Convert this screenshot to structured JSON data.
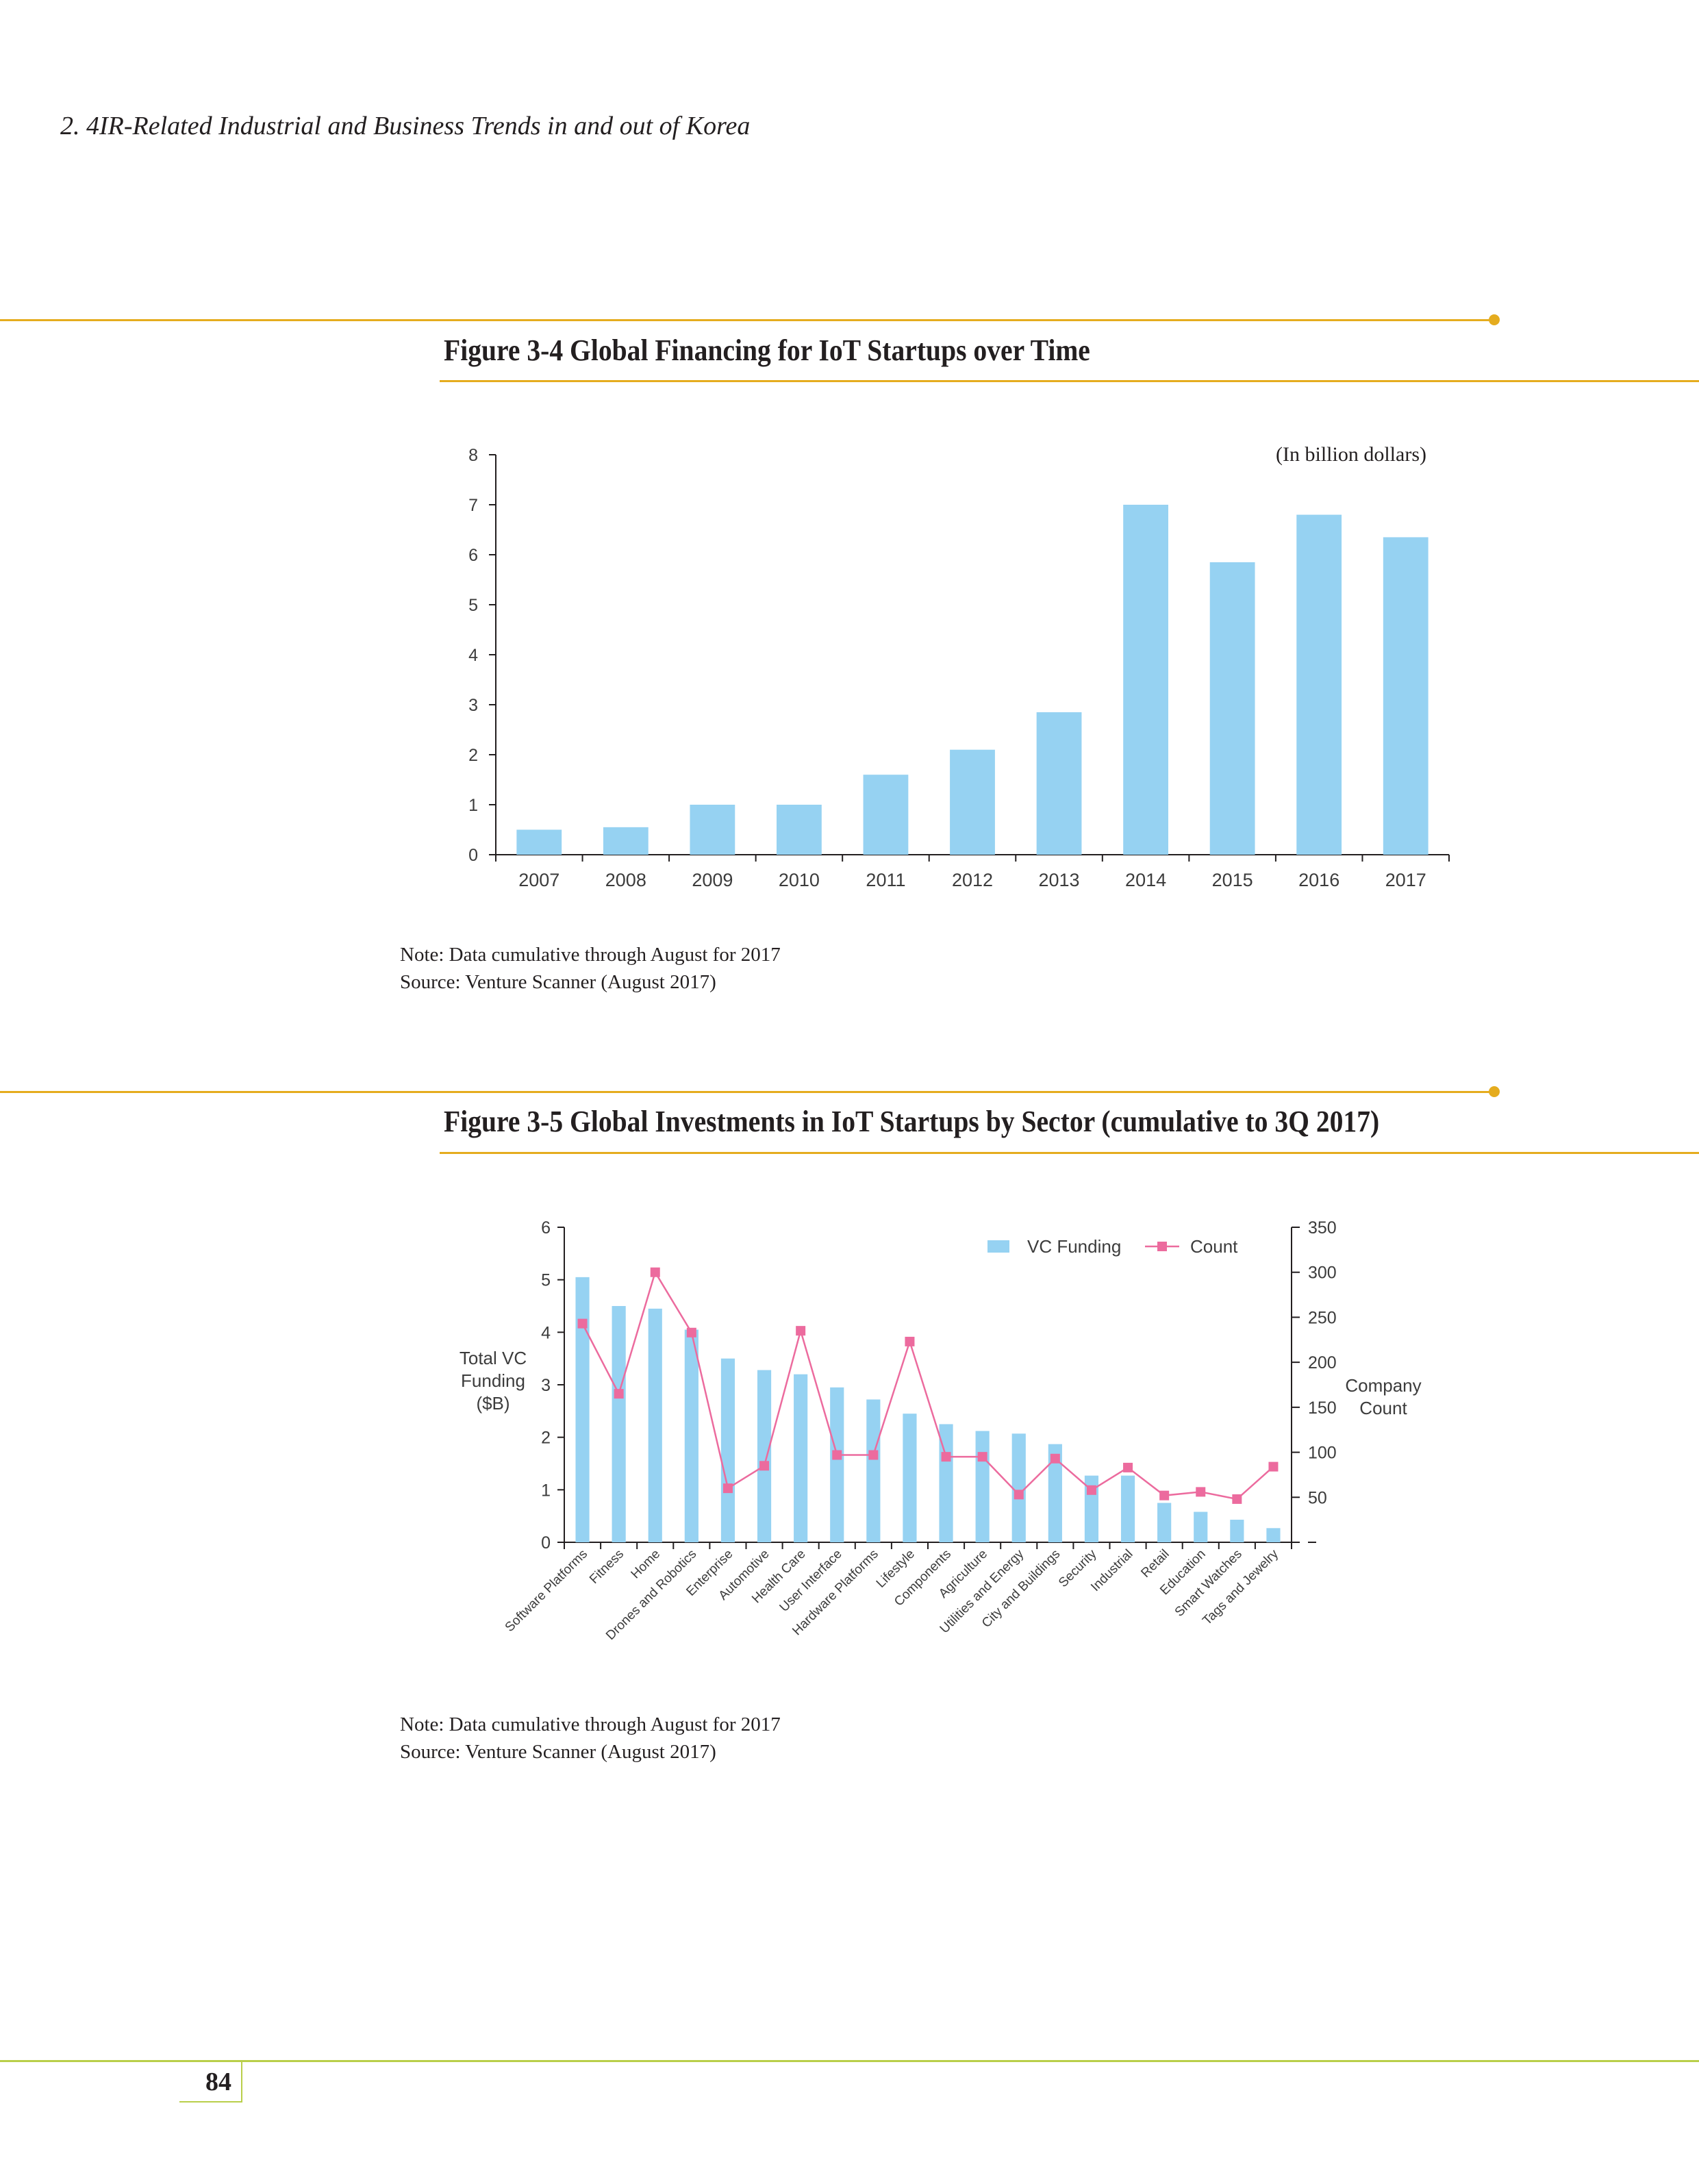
{
  "running_head": "2. 4IR-Related Industrial and Business Trends in and out of Korea",
  "page_number": "84",
  "colors": {
    "rule": "#e5ac1e",
    "bar": "#96d2f2",
    "count_line": "#ec6b9e",
    "footer_rule": "#b9cf4a"
  },
  "figure1": {
    "title": "Figure 3-4  Global Financing for IoT Startups over Time",
    "unit_label": "(In billion dollars)",
    "note": "Note: Data cumulative through August for 2017",
    "source": "Source: Venture Scanner (August 2017)"
  },
  "figure2": {
    "title": "Figure 3-5  Global Investments in IoT Startups by Sector (cumulative to 3Q 2017)",
    "note": "Note: Data cumulative through August for 2017",
    "source": "Source: Venture Scanner (August 2017)"
  },
  "chart_data": [
    {
      "type": "bar",
      "categories": [
        "2007",
        "2008",
        "2009",
        "2010",
        "2011",
        "2012",
        "2013",
        "2014",
        "2015",
        "2016",
        "2017"
      ],
      "values": [
        0.5,
        0.55,
        1.0,
        1.0,
        1.6,
        2.1,
        2.85,
        7.0,
        5.85,
        6.8,
        6.35
      ],
      "title": "Figure 3-4  Global Financing for IoT Startups over Time",
      "xlabel": "",
      "ylabel": "",
      "ylim": [
        0,
        8
      ],
      "yticks": [
        0,
        1,
        2,
        3,
        4,
        5,
        6,
        7,
        8
      ],
      "annotation": "(In billion dollars)",
      "grid": false
    },
    {
      "type": "bar",
      "title": "Figure 3-5  Global Investments in IoT Startups by Sector (cumulative to 3Q 2017)",
      "categories": [
        "Software Platforms",
        "Fitness",
        "Home",
        "Drones and Robotics",
        "Enterprise",
        "Automotive",
        "Health Care",
        "User Interface",
        "Hardware Platforms",
        "Lifestyle",
        "Components",
        "Agriculture",
        "Utilities and Energy",
        "City and Buildings",
        "Security",
        "Industrial",
        "Retail",
        "Education",
        "Smart Watches",
        "Tags and Jewelry"
      ],
      "series": [
        {
          "name": "VC Funding",
          "type": "bar",
          "axis": "left",
          "values": [
            5.05,
            4.5,
            4.45,
            4.05,
            3.5,
            3.28,
            3.2,
            2.95,
            2.72,
            2.45,
            2.25,
            2.12,
            2.07,
            1.87,
            1.27,
            1.27,
            0.75,
            0.58,
            0.43,
            0.27
          ]
        },
        {
          "name": "Count",
          "type": "line",
          "axis": "right",
          "values": [
            243,
            165,
            300,
            233,
            60,
            85,
            235,
            97,
            97,
            223,
            95,
            95,
            53,
            93,
            58,
            83,
            52,
            56,
            48,
            84
          ]
        }
      ],
      "ylabel": "Total VC Funding ($B)",
      "ylabel_lines": [
        "Total VC",
        "Funding",
        "($B)"
      ],
      "y2label": "Company Count",
      "y2label_lines": [
        "Company",
        "Count"
      ],
      "ylim": [
        0,
        6
      ],
      "yticks": [
        0,
        1,
        2,
        3,
        4,
        5,
        6
      ],
      "y2lim": [
        0,
        350
      ],
      "y2ticks": [
        50,
        100,
        150,
        200,
        250,
        300,
        350
      ],
      "legend": "top-right",
      "grid": false
    }
  ]
}
